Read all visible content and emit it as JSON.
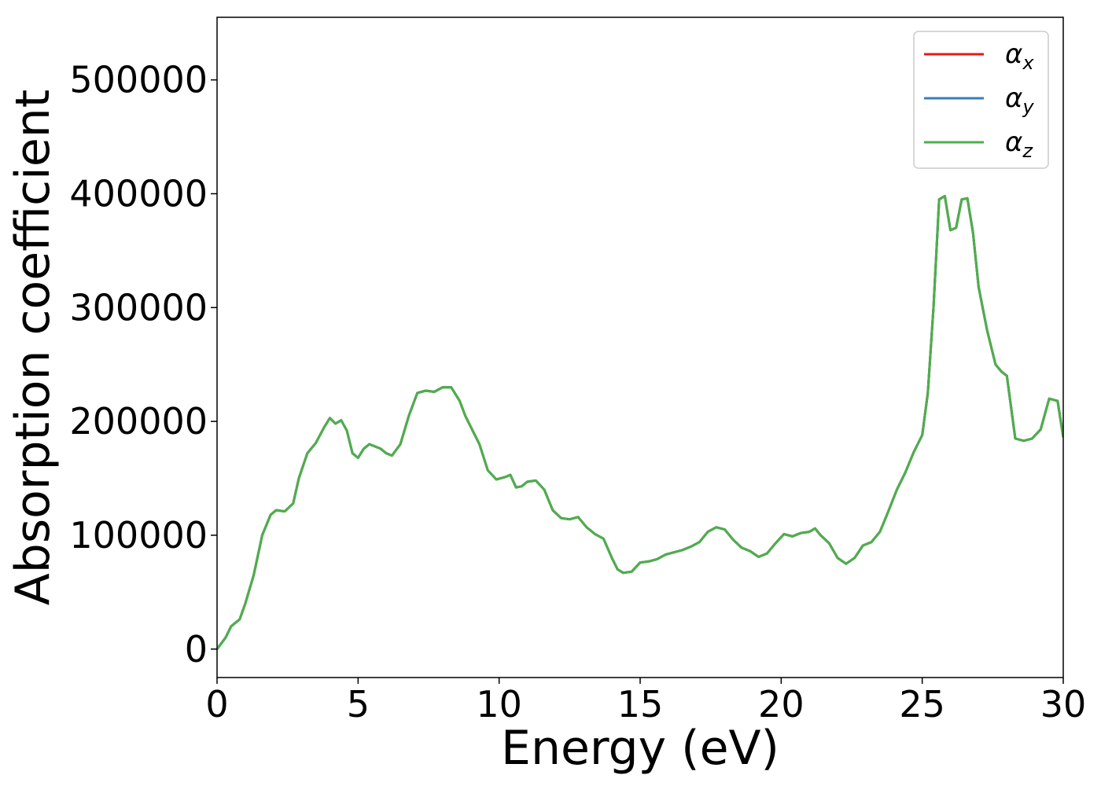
{
  "chart_data": {
    "type": "line",
    "xlabel": "Energy (eV)",
    "ylabel": "Absorption coefficient",
    "xlim": [
      0,
      30
    ],
    "ylim": [
      -25000,
      555000
    ],
    "xticks": [
      0,
      5,
      10,
      15,
      20,
      25,
      30
    ],
    "yticks": [
      0,
      100000,
      200000,
      300000,
      400000,
      500000
    ],
    "grid": false,
    "legend_position": "top-right",
    "x": [
      0,
      0.3,
      0.5,
      0.8,
      1.0,
      1.3,
      1.6,
      1.9,
      2.1,
      2.4,
      2.7,
      2.9,
      3.2,
      3.5,
      3.8,
      4.0,
      4.2,
      4.4,
      4.6,
      4.8,
      5.0,
      5.2,
      5.4,
      5.6,
      5.8,
      6.0,
      6.2,
      6.5,
      6.8,
      7.1,
      7.4,
      7.7,
      8.0,
      8.3,
      8.6,
      8.8,
      9.0,
      9.3,
      9.6,
      9.9,
      10.2,
      10.4,
      10.6,
      10.8,
      11.0,
      11.3,
      11.6,
      11.9,
      12.2,
      12.5,
      12.8,
      13.1,
      13.4,
      13.7,
      14.0,
      14.2,
      14.4,
      14.7,
      15.0,
      15.3,
      15.6,
      15.9,
      16.2,
      16.5,
      16.8,
      17.1,
      17.4,
      17.7,
      18.0,
      18.3,
      18.6,
      18.9,
      19.2,
      19.5,
      19.8,
      20.1,
      20.4,
      20.7,
      21.0,
      21.2,
      21.4,
      21.7,
      22.0,
      22.3,
      22.6,
      22.9,
      23.2,
      23.5,
      23.8,
      24.1,
      24.4,
      24.7,
      25.0,
      25.2,
      25.4,
      25.6,
      25.8,
      26.0,
      26.2,
      26.4,
      26.6,
      26.8,
      27.0,
      27.3,
      27.6,
      27.8,
      28.0,
      28.3,
      28.6,
      28.9,
      29.2,
      29.5,
      29.8,
      30.0
    ],
    "series": [
      {
        "name": "αx",
        "color": "#e41a1c",
        "values": [
          0,
          10000,
          20000,
          26000,
          40000,
          65000,
          100000,
          118000,
          122000,
          121000,
          128000,
          150000,
          172000,
          181000,
          195000,
          203000,
          198000,
          201000,
          192000,
          172000,
          168000,
          176000,
          180000,
          178000,
          176000,
          172000,
          170000,
          180000,
          205000,
          225000,
          227000,
          226000,
          230000,
          230000,
          218000,
          205000,
          195000,
          180000,
          157000,
          149000,
          151000,
          153000,
          142000,
          143000,
          147000,
          148000,
          140000,
          122000,
          115000,
          114000,
          116000,
          107000,
          101000,
          97000,
          80000,
          70000,
          67000,
          68000,
          76000,
          77000,
          79000,
          83000,
          85000,
          87000,
          90000,
          94000,
          103000,
          107000,
          105000,
          96000,
          89000,
          86000,
          81000,
          84000,
          93000,
          101000,
          99000,
          102000,
          103000,
          106000,
          100000,
          93000,
          80000,
          75000,
          80000,
          91000,
          94000,
          103000,
          121000,
          140000,
          155000,
          173000,
          188000,
          225000,
          300000,
          395000,
          398000,
          368000,
          370000,
          395000,
          396000,
          366000,
          318000,
          280000,
          250000,
          244000,
          240000,
          185000,
          183000,
          185000,
          193000,
          220000,
          218000,
          186000
        ]
      },
      {
        "name": "αy",
        "color": "#377eb8",
        "values": [
          0,
          10000,
          20000,
          26000,
          40000,
          65000,
          100000,
          118000,
          122000,
          121000,
          128000,
          150000,
          172000,
          181000,
          195000,
          203000,
          198000,
          201000,
          192000,
          172000,
          168000,
          176000,
          180000,
          178000,
          176000,
          172000,
          170000,
          180000,
          205000,
          225000,
          227000,
          226000,
          230000,
          230000,
          218000,
          205000,
          195000,
          180000,
          157000,
          149000,
          151000,
          153000,
          142000,
          143000,
          147000,
          148000,
          140000,
          122000,
          115000,
          114000,
          116000,
          107000,
          101000,
          97000,
          80000,
          70000,
          67000,
          68000,
          76000,
          77000,
          79000,
          83000,
          85000,
          87000,
          90000,
          94000,
          103000,
          107000,
          105000,
          96000,
          89000,
          86000,
          81000,
          84000,
          93000,
          101000,
          99000,
          102000,
          103000,
          106000,
          100000,
          93000,
          80000,
          75000,
          80000,
          91000,
          94000,
          103000,
          121000,
          140000,
          155000,
          173000,
          188000,
          225000,
          300000,
          395000,
          398000,
          368000,
          370000,
          395000,
          396000,
          366000,
          318000,
          280000,
          250000,
          244000,
          240000,
          185000,
          183000,
          185000,
          193000,
          220000,
          218000,
          186000
        ]
      },
      {
        "name": "αz",
        "color": "#4daf4a",
        "values": [
          0,
          10000,
          20000,
          26000,
          40000,
          65000,
          100000,
          118000,
          122000,
          121000,
          128000,
          150000,
          172000,
          181000,
          195000,
          203000,
          198000,
          201000,
          192000,
          172000,
          168000,
          176000,
          180000,
          178000,
          176000,
          172000,
          170000,
          180000,
          205000,
          225000,
          227000,
          226000,
          230000,
          230000,
          218000,
          205000,
          195000,
          180000,
          157000,
          149000,
          151000,
          153000,
          142000,
          143000,
          147000,
          148000,
          140000,
          122000,
          115000,
          114000,
          116000,
          107000,
          101000,
          97000,
          80000,
          70000,
          67000,
          68000,
          76000,
          77000,
          79000,
          83000,
          85000,
          87000,
          90000,
          94000,
          103000,
          107000,
          105000,
          96000,
          89000,
          86000,
          81000,
          84000,
          93000,
          101000,
          99000,
          102000,
          103000,
          106000,
          100000,
          93000,
          80000,
          75000,
          80000,
          91000,
          94000,
          103000,
          121000,
          140000,
          155000,
          173000,
          188000,
          225000,
          300000,
          395000,
          398000,
          368000,
          370000,
          395000,
          396000,
          366000,
          318000,
          280000,
          250000,
          244000,
          240000,
          185000,
          183000,
          185000,
          193000,
          220000,
          218000,
          186000
        ]
      }
    ],
    "legend": [
      {
        "symbol": "α",
        "sub": "x",
        "color": "#e41a1c"
      },
      {
        "symbol": "α",
        "sub": "y",
        "color": "#377eb8"
      },
      {
        "symbol": "α",
        "sub": "z",
        "color": "#4daf4a"
      }
    ]
  }
}
